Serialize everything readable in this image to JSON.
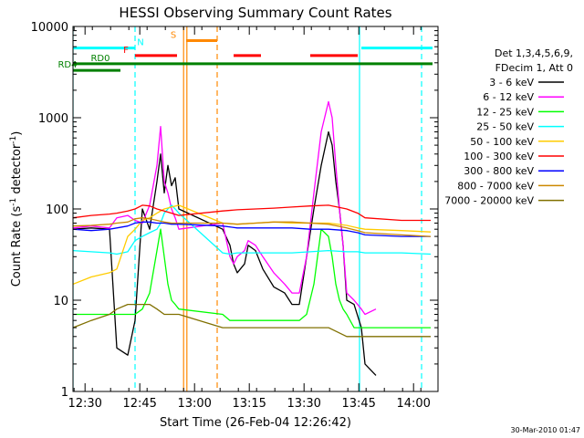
{
  "chart_data": {
    "type": "line",
    "title": "HESSI Observing Summary Count Rates",
    "xlabel": "Start Time (26-Feb-04 12:26:42)",
    "ylabel": "Count Rate (s⁻¹ detector⁻¹)",
    "ylabel_main": "Count Rate (s",
    "ylabel_sup1": "-1",
    "ylabel_mid": " detector",
    "ylabel_sup2": "-1",
    "ylabel_end": ")",
    "yscale": "log",
    "xlim_minutes": [
      0,
      100
    ],
    "ylim": [
      1,
      10000
    ],
    "x_ticks": [
      {
        "label": "12:30",
        "min": 3.3
      },
      {
        "label": "12:45",
        "min": 18.3
      },
      {
        "label": "13:00",
        "min": 33.3
      },
      {
        "label": "13:15",
        "min": 48.3
      },
      {
        "label": "13:30",
        "min": 63.3
      },
      {
        "label": "13:45",
        "min": 78.3
      },
      {
        "label": "14:00",
        "min": 93.3
      }
    ],
    "y_ticks": [
      {
        "label": "1",
        "v": 1
      },
      {
        "label": "10",
        "v": 10
      },
      {
        "label": "100",
        "v": 100
      },
      {
        "label": "1000",
        "v": 1000
      },
      {
        "label": "10000",
        "v": 10000
      }
    ],
    "legend_header": [
      "Det 1,3,4,5,6,9,",
      "FDecim 1, Att 0"
    ],
    "legend_placement": "right",
    "series": [
      {
        "name": "3 - 6 keV",
        "color": "#000000",
        "points": [
          [
            0,
            60
          ],
          [
            5,
            62
          ],
          [
            10,
            60
          ],
          [
            12,
            3
          ],
          [
            15,
            2.5
          ],
          [
            17,
            6
          ],
          [
            19,
            100
          ],
          [
            21,
            60
          ],
          [
            23,
            200
          ],
          [
            24,
            400
          ],
          [
            25,
            150
          ],
          [
            26,
            300
          ],
          [
            27,
            180
          ],
          [
            28,
            220
          ],
          [
            29,
            100
          ],
          [
            41,
            60
          ],
          [
            43,
            40
          ],
          [
            44,
            25
          ],
          [
            45,
            20
          ],
          [
            47,
            25
          ],
          [
            48,
            40
          ],
          [
            50,
            35
          ],
          [
            52,
            22
          ],
          [
            55,
            14
          ],
          [
            58,
            12
          ],
          [
            60,
            9
          ],
          [
            62,
            9
          ],
          [
            64,
            30
          ],
          [
            66,
            100
          ],
          [
            68,
            300
          ],
          [
            70,
            700
          ],
          [
            71,
            500
          ],
          [
            72,
            200
          ],
          [
            73,
            100
          ],
          [
            74,
            40
          ],
          [
            75,
            10
          ],
          [
            77,
            9
          ],
          [
            79,
            5
          ],
          [
            80,
            2
          ],
          [
            83,
            1.5
          ]
        ]
      },
      {
        "name": "6 - 12 keV",
        "color": "#ff00ff",
        "points": [
          [
            0,
            62
          ],
          [
            5,
            65
          ],
          [
            10,
            62
          ],
          [
            12,
            80
          ],
          [
            15,
            85
          ],
          [
            17,
            75
          ],
          [
            19,
            70
          ],
          [
            21,
            110
          ],
          [
            23,
            300
          ],
          [
            24,
            800
          ],
          [
            25,
            200
          ],
          [
            26,
            150
          ],
          [
            27,
            100
          ],
          [
            28,
            80
          ],
          [
            29,
            60
          ],
          [
            41,
            70
          ],
          [
            43,
            30
          ],
          [
            44,
            25
          ],
          [
            45,
            30
          ],
          [
            47,
            35
          ],
          [
            48,
            45
          ],
          [
            50,
            40
          ],
          [
            52,
            30
          ],
          [
            55,
            20
          ],
          [
            58,
            15
          ],
          [
            60,
            12
          ],
          [
            62,
            12
          ],
          [
            64,
            30
          ],
          [
            66,
            150
          ],
          [
            68,
            700
          ],
          [
            70,
            1500
          ],
          [
            71,
            1000
          ],
          [
            72,
            300
          ],
          [
            73,
            100
          ],
          [
            74,
            40
          ],
          [
            75,
            12
          ],
          [
            77,
            10
          ],
          [
            79,
            8
          ],
          [
            80,
            7
          ],
          [
            83,
            8
          ]
        ]
      },
      {
        "name": "12 - 25 keV",
        "color": "#00ff00",
        "points": [
          [
            0,
            7
          ],
          [
            5,
            7
          ],
          [
            10,
            7
          ],
          [
            12,
            7
          ],
          [
            15,
            7
          ],
          [
            17,
            7
          ],
          [
            19,
            8
          ],
          [
            21,
            12
          ],
          [
            23,
            35
          ],
          [
            24,
            60
          ],
          [
            25,
            30
          ],
          [
            26,
            15
          ],
          [
            27,
            10
          ],
          [
            28,
            9
          ],
          [
            29,
            8
          ],
          [
            41,
            7
          ],
          [
            43,
            6
          ],
          [
            44,
            6
          ],
          [
            46,
            6
          ],
          [
            48,
            6
          ],
          [
            50,
            6
          ],
          [
            52,
            6
          ],
          [
            55,
            6
          ],
          [
            58,
            6
          ],
          [
            60,
            6
          ],
          [
            62,
            6
          ],
          [
            64,
            7
          ],
          [
            66,
            15
          ],
          [
            68,
            60
          ],
          [
            70,
            50
          ],
          [
            71,
            30
          ],
          [
            72,
            15
          ],
          [
            73,
            10
          ],
          [
            74,
            8
          ],
          [
            75,
            7
          ],
          [
            77,
            5
          ],
          [
            79,
            5
          ],
          [
            80,
            5
          ],
          [
            83,
            5
          ],
          [
            98,
            5
          ]
        ]
      },
      {
        "name": "25 - 50 keV",
        "color": "#00ffff",
        "points": [
          [
            0,
            35
          ],
          [
            5,
            34
          ],
          [
            10,
            33
          ],
          [
            12,
            32
          ],
          [
            15,
            34
          ],
          [
            17,
            45
          ],
          [
            19,
            50
          ],
          [
            21,
            55
          ],
          [
            23,
            60
          ],
          [
            24,
            70
          ],
          [
            25,
            90
          ],
          [
            26,
            100
          ],
          [
            27,
            110
          ],
          [
            28,
            100
          ],
          [
            29,
            90
          ],
          [
            41,
            33
          ],
          [
            43,
            32
          ],
          [
            45,
            33
          ],
          [
            50,
            33
          ],
          [
            55,
            33
          ],
          [
            60,
            33
          ],
          [
            65,
            34
          ],
          [
            70,
            35
          ],
          [
            75,
            34
          ],
          [
            78,
            34
          ],
          [
            80,
            33
          ],
          [
            90,
            33
          ],
          [
            98,
            32
          ]
        ]
      },
      {
        "name": "50 - 100 keV",
        "color": "#ffcc00",
        "points": [
          [
            0,
            15
          ],
          [
            5,
            18
          ],
          [
            10,
            20
          ],
          [
            12,
            22
          ],
          [
            15,
            50
          ],
          [
            17,
            60
          ],
          [
            19,
            75
          ],
          [
            21,
            80
          ],
          [
            23,
            90
          ],
          [
            25,
            100
          ],
          [
            27,
            105
          ],
          [
            29,
            110
          ],
          [
            41,
            70
          ],
          [
            45,
            68
          ],
          [
            50,
            70
          ],
          [
            55,
            72
          ],
          [
            60,
            70
          ],
          [
            65,
            70
          ],
          [
            70,
            70
          ],
          [
            75,
            66
          ],
          [
            78,
            62
          ],
          [
            80,
            60
          ],
          [
            90,
            58
          ],
          [
            98,
            56
          ]
        ]
      },
      {
        "name": "100 - 300 keV",
        "color": "#ff0000",
        "points": [
          [
            0,
            80
          ],
          [
            5,
            85
          ],
          [
            10,
            88
          ],
          [
            12,
            90
          ],
          [
            15,
            95
          ],
          [
            17,
            100
          ],
          [
            19,
            110
          ],
          [
            21,
            108
          ],
          [
            23,
            100
          ],
          [
            25,
            95
          ],
          [
            27,
            90
          ],
          [
            29,
            85
          ],
          [
            41,
            95
          ],
          [
            45,
            98
          ],
          [
            50,
            100
          ],
          [
            55,
            102
          ],
          [
            60,
            105
          ],
          [
            65,
            108
          ],
          [
            70,
            110
          ],
          [
            75,
            100
          ],
          [
            78,
            90
          ],
          [
            80,
            80
          ],
          [
            90,
            75
          ],
          [
            98,
            75
          ]
        ]
      },
      {
        "name": "300 - 800 keV",
        "color": "#0000ff",
        "points": [
          [
            0,
            60
          ],
          [
            5,
            58
          ],
          [
            10,
            60
          ],
          [
            12,
            62
          ],
          [
            15,
            65
          ],
          [
            17,
            70
          ],
          [
            19,
            72
          ],
          [
            21,
            72
          ],
          [
            23,
            70
          ],
          [
            25,
            70
          ],
          [
            27,
            68
          ],
          [
            29,
            68
          ],
          [
            41,
            65
          ],
          [
            45,
            62
          ],
          [
            50,
            62
          ],
          [
            55,
            62
          ],
          [
            60,
            62
          ],
          [
            65,
            60
          ],
          [
            70,
            60
          ],
          [
            75,
            58
          ],
          [
            78,
            55
          ],
          [
            80,
            52
          ],
          [
            90,
            50
          ],
          [
            98,
            50
          ]
        ]
      },
      {
        "name": "800 - 7000 keV",
        "color": "#cc8800",
        "points": [
          [
            0,
            65
          ],
          [
            5,
            66
          ],
          [
            10,
            68
          ],
          [
            12,
            70
          ],
          [
            15,
            72
          ],
          [
            17,
            78
          ],
          [
            19,
            80
          ],
          [
            21,
            78
          ],
          [
            23,
            75
          ],
          [
            25,
            72
          ],
          [
            27,
            70
          ],
          [
            29,
            70
          ],
          [
            41,
            70
          ],
          [
            45,
            68
          ],
          [
            50,
            70
          ],
          [
            55,
            72
          ],
          [
            60,
            72
          ],
          [
            65,
            70
          ],
          [
            70,
            68
          ],
          [
            75,
            62
          ],
          [
            78,
            58
          ],
          [
            80,
            55
          ],
          [
            90,
            52
          ],
          [
            98,
            50
          ]
        ]
      },
      {
        "name": "7000 - 20000 keV",
        "color": "#807000",
        "points": [
          [
            0,
            5
          ],
          [
            5,
            6
          ],
          [
            10,
            7
          ],
          [
            12,
            8
          ],
          [
            15,
            9
          ],
          [
            17,
            9
          ],
          [
            19,
            9
          ],
          [
            21,
            9
          ],
          [
            23,
            8
          ],
          [
            25,
            7
          ],
          [
            27,
            7
          ],
          [
            29,
            7
          ],
          [
            41,
            5
          ],
          [
            45,
            5
          ],
          [
            50,
            5
          ],
          [
            55,
            5
          ],
          [
            60,
            5
          ],
          [
            65,
            5
          ],
          [
            70,
            5
          ],
          [
            75,
            4
          ],
          [
            78,
            4
          ],
          [
            80,
            4
          ],
          [
            90,
            4
          ],
          [
            98,
            4
          ]
        ]
      }
    ],
    "vlines": [
      {
        "min": 0,
        "color": "#00ffff",
        "style": "solid"
      },
      {
        "min": 17,
        "color": "#00ffff",
        "style": "dashed"
      },
      {
        "min": 30.3,
        "color": "#ff8800",
        "style": "solid"
      },
      {
        "min": 31.2,
        "color": "#ff8800",
        "style": "solid"
      },
      {
        "min": 39.5,
        "color": "#ff8800",
        "style": "dashed"
      },
      {
        "min": 78.5,
        "color": "#00ffff",
        "style": "solid"
      },
      {
        "min": 95.5,
        "color": "#00ffff",
        "style": "dashed"
      }
    ],
    "flag_bars": [
      {
        "label": "N",
        "color": "#00ffff",
        "y": 5800,
        "from": 0,
        "to": 17,
        "label_at": 18.5
      },
      {
        "label": "",
        "color": "#00ffff",
        "y": 5800,
        "from": 79,
        "to": 98.5,
        "label_at": null
      },
      {
        "label": "S",
        "color": "#ff8800",
        "y": 7000,
        "from": 31,
        "to": 39.5,
        "label_at": 27.5
      },
      {
        "label": "F",
        "color": "#ff0000",
        "y": 4800,
        "from": 17,
        "to": 28.5,
        "label_at": 14.5
      },
      {
        "label": "",
        "color": "#ff0000",
        "y": 4800,
        "from": 44,
        "to": 51.5,
        "label_at": null
      },
      {
        "label": "",
        "color": "#ff0000",
        "y": 4800,
        "from": 65,
        "to": 78,
        "label_at": null
      },
      {
        "label": "RD0",
        "color": "#008000",
        "y": 3900,
        "from": 0,
        "to": 98.5,
        "label_at": 7.5
      },
      {
        "label": "RD4",
        "color": "#008000",
        "y": 3300,
        "from": 0,
        "to": 13,
        "label_at": -1.5
      }
    ],
    "footer_date": "30-Mar-2010 01:47"
  }
}
